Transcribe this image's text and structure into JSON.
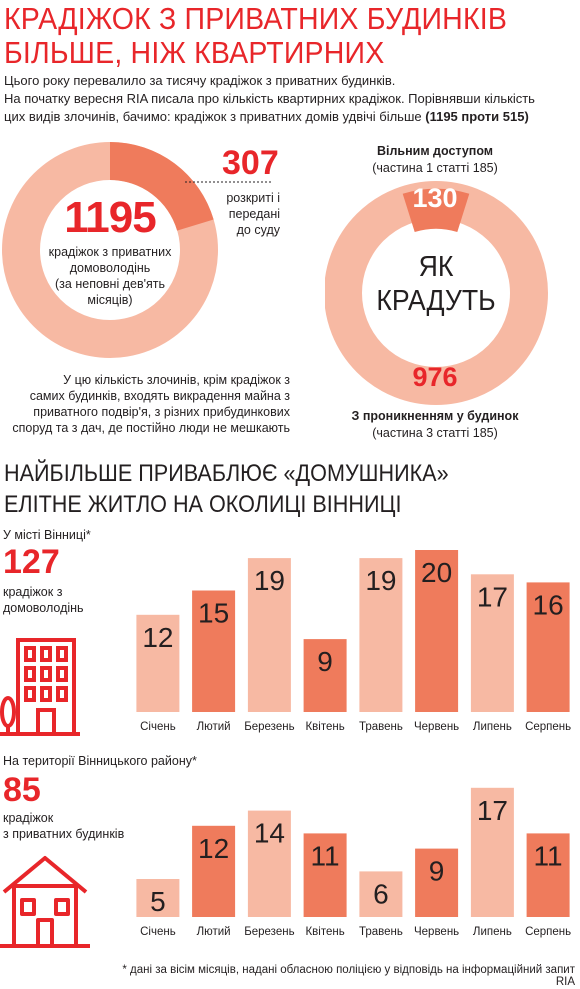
{
  "header": {
    "title_line1": "КРАДІЖОК З ПРИВАТНИХ БУДИНКІВ",
    "title_line2": "БІЛЬШЕ, НІЖ КВАРТИРНИХ",
    "intro_line1": "Цього року перевалило за тисячу крадіжок з приватних будинків.",
    "intro_line2": "На початку вересня RIA писала про кількість квартирних крадіжок. Порівнявши кількість",
    "intro_line3": "цих видів злочинів, бачимо: крадіжок з приватних домів удвічі більше",
    "intro_bold": "(1195 проти 515)"
  },
  "donut_left": {
    "total": "1195",
    "total_label_1": "крадіжок з приватних",
    "total_label_2": "домоволодінь",
    "total_label_3": "(за неповні дев'ять",
    "total_label_4": "місяців)",
    "solved": "307",
    "solved_label_1": "розкриті і",
    "solved_label_2": "передані",
    "solved_label_3": "до суду",
    "note_1": "У цю кількість злочинів, крім крадіжок з",
    "note_2": "самих будинків, входять викрадення майна з",
    "note_3": "приватного подвір'я, з різних прибудинкових",
    "note_4": "споруд та з дач, де постійно люди не мешкають",
    "color_main": "#f7b9a3",
    "color_accent": "#ef7b5c"
  },
  "donut_right": {
    "free_title": "Вільним доступом",
    "free_article": "(частина 1 статті 185)",
    "free_value": "130",
    "center_1": "ЯК",
    "center_2": "КРАДУТЬ",
    "break_value": "976",
    "break_title": "З проникненням у будинок",
    "break_article": "(частина 3 статті 185)"
  },
  "section": {
    "title_line1": "НАЙБІЛЬШЕ ПРИВАБЛЮЄ «ДОМУШНИКА»",
    "title_line2": "ЕЛІТНЕ ЖИТЛО НА ОКОЛИЦІ ВІННИЦІ"
  },
  "city": {
    "label": "У місті Вінниці*",
    "total": "127",
    "total_label_1": "крадіжок з",
    "total_label_2": "домоволодінь"
  },
  "district": {
    "label": "На території Вінницького району*",
    "total": "85",
    "total_label_1": "крадіжок",
    "total_label_2": "з приватних будинків"
  },
  "chart_data": [
    {
      "type": "bar",
      "categories": [
        "Січень",
        "Лютий",
        "Березень",
        "Квітень",
        "Травень",
        "Червень",
        "Липень",
        "Серпень"
      ],
      "values": [
        12,
        15,
        19,
        9,
        19,
        20,
        17,
        16
      ],
      "title": "У місті Вінниці*",
      "ylim": [
        0,
        20
      ],
      "grid": false
    },
    {
      "type": "bar",
      "categories": [
        "Січень",
        "Лютий",
        "Березень",
        "Квітень",
        "Травень",
        "Червень",
        "Липень",
        "Серпень"
      ],
      "values": [
        5,
        12,
        14,
        11,
        6,
        9,
        17,
        11
      ],
      "title": "На території Вінницького району*",
      "ylim": [
        0,
        17
      ],
      "grid": false
    }
  ],
  "footnote": "* дані за вісім місяців, надані обласною поліцією у відповідь на інформаційний запит RIA"
}
